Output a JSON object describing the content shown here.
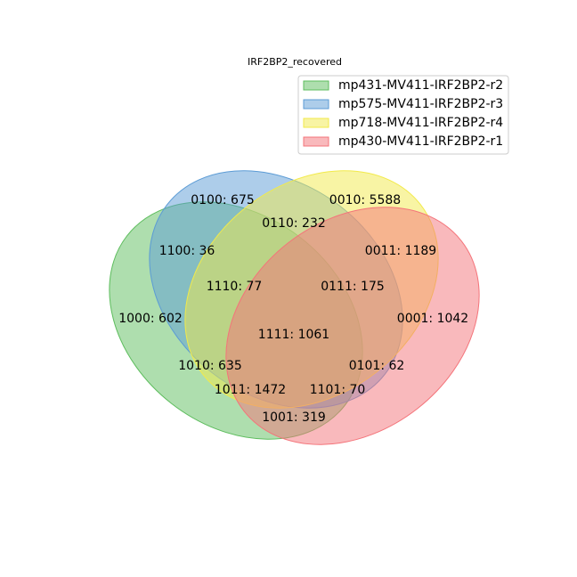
{
  "chart_data": {
    "type": "venn",
    "title": "IRF2BP2_recovered",
    "sets": [
      {
        "name": "mp431-MV411-IRF2BP2-r2",
        "color": "#5dbd5d"
      },
      {
        "name": "mp575-MV411-IRF2BP2-r3",
        "color": "#5b9bd5"
      },
      {
        "name": "mp718-MV411-IRF2BP2-r4",
        "color": "#f2ea4a"
      },
      {
        "name": "mp430-MV411-IRF2BP2-r1",
        "color": "#f4747a"
      }
    ],
    "regions": [
      {
        "code": "0100",
        "value": 675
      },
      {
        "code": "0010",
        "value": 5588
      },
      {
        "code": "0110",
        "value": 232
      },
      {
        "code": "1100",
        "value": 36
      },
      {
        "code": "0011",
        "value": 1189
      },
      {
        "code": "1110",
        "value": 77
      },
      {
        "code": "0111",
        "value": 175
      },
      {
        "code": "1000",
        "value": 602
      },
      {
        "code": "0001",
        "value": 1042
      },
      {
        "code": "1111",
        "value": 1061
      },
      {
        "code": "1010",
        "value": 635
      },
      {
        "code": "0101",
        "value": 62
      },
      {
        "code": "1011",
        "value": 1472
      },
      {
        "code": "1101",
        "value": 70
      },
      {
        "code": "1001",
        "value": 319
      }
    ],
    "legend_position": "top-right"
  }
}
